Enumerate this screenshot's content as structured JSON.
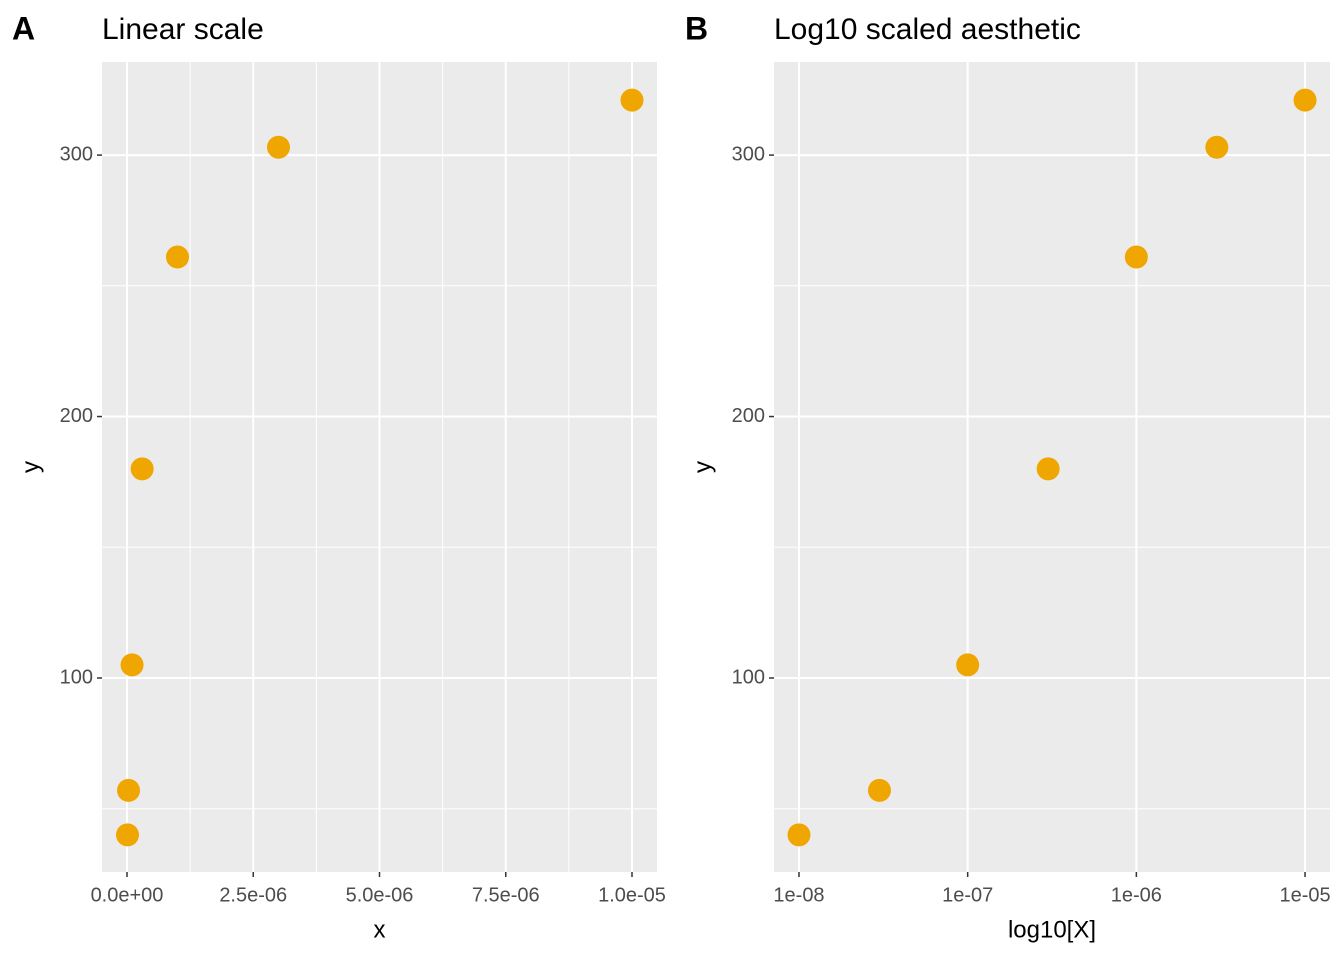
{
  "chart_data": [
    {
      "type": "scatter",
      "tag": "A",
      "title": "Linear scale",
      "x_label": "x",
      "y_label": "y",
      "x": [
        1e-08,
        3e-08,
        1e-07,
        3e-07,
        1e-06,
        3e-06,
        1e-05
      ],
      "series": [
        {
          "color": "#efa600",
          "values": [
            40,
            57,
            105,
            180,
            261,
            303,
            321
          ]
        }
      ],
      "xscale": "linear",
      "xlim": [
        -4.95e-07,
        1.0495e-05
      ],
      "xticks": [
        {
          "value": 0,
          "label": "0.0e+00"
        },
        {
          "value": 2.5e-06,
          "label": "2.5e-06"
        },
        {
          "value": 5e-06,
          "label": "5.0e-06"
        },
        {
          "value": 7.5e-06,
          "label": "7.5e-06"
        },
        {
          "value": 1e-05,
          "label": "1.0e-05"
        }
      ],
      "x_minor_ticks": [
        1.25e-06,
        3.75e-06,
        6.25e-06,
        8.75e-06
      ],
      "ylim": [
        25.8,
        335.6
      ],
      "yticks": [
        100,
        200,
        300
      ],
      "y_minor_ticks": [
        50,
        150,
        250
      ],
      "grid": true
    },
    {
      "type": "scatter",
      "tag": "B",
      "title": "Log10 scaled aesthetic",
      "x_label": "log10[X]",
      "y_label": "y",
      "x": [
        1e-08,
        3e-08,
        1e-07,
        3e-07,
        1e-06,
        3e-06,
        1e-05
      ],
      "series": [
        {
          "color": "#efa600",
          "values": [
            40,
            57,
            105,
            180,
            261,
            303,
            321
          ]
        }
      ],
      "xscale": "log10",
      "xlim": [
        7.11e-09,
        1.406e-05
      ],
      "xticks": [
        {
          "value": 1e-08,
          "label": "1e-08"
        },
        {
          "value": 1e-07,
          "label": "1e-07"
        },
        {
          "value": 1e-06,
          "label": "1e-06"
        },
        {
          "value": 1e-05,
          "label": "1e-05"
        }
      ],
      "ylim": [
        25.8,
        335.6
      ],
      "yticks": [
        100,
        200,
        300
      ],
      "y_minor_ticks": [
        50,
        150,
        250
      ],
      "grid": true
    }
  ]
}
